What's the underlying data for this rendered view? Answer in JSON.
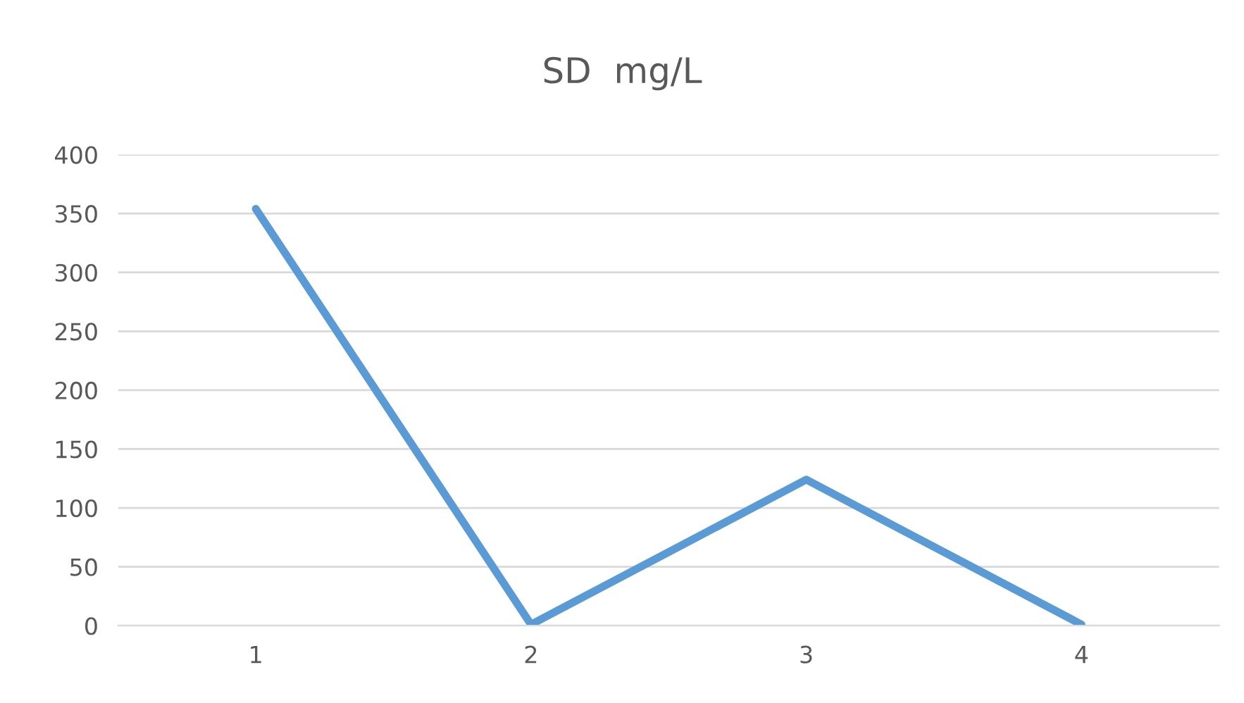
{
  "chart_data": {
    "type": "line",
    "title": "SD  mg/L",
    "categories": [
      "1",
      "2",
      "3",
      "4"
    ],
    "series": [
      {
        "color": "#5b9bd5",
        "values": [
          354,
          1,
          124,
          1
        ]
      }
    ],
    "ylim": [
      0,
      400
    ],
    "yticks": [
      0,
      50,
      100,
      150,
      200,
      250,
      300,
      350,
      400
    ],
    "grid": "y",
    "legend": false,
    "marker": "none",
    "line_style": "solid"
  }
}
